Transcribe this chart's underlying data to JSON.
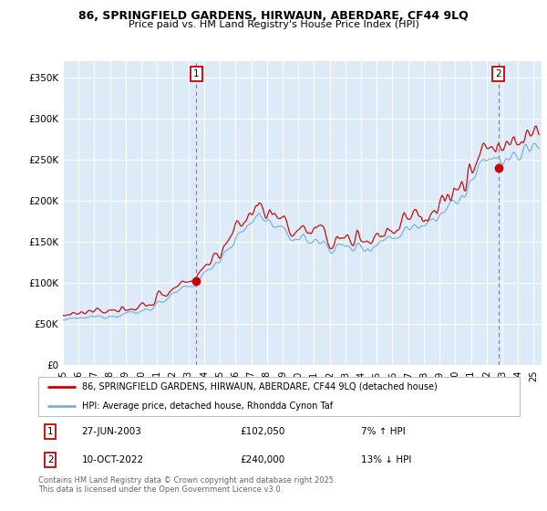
{
  "title_line1": "86, SPRINGFIELD GARDENS, HIRWAUN, ABERDARE, CF44 9LQ",
  "title_line2": "Price paid vs. HM Land Registry's House Price Index (HPI)",
  "ylabel_ticks": [
    "£0",
    "£50K",
    "£100K",
    "£150K",
    "£200K",
    "£250K",
    "£300K",
    "£350K"
  ],
  "ytick_values": [
    0,
    50000,
    100000,
    150000,
    200000,
    250000,
    300000,
    350000
  ],
  "ylim": [
    0,
    370000
  ],
  "xlim_start": 1995,
  "xlim_end": 2025.5,
  "bg_color": "#ddeaf8",
  "grid_color": "#ffffff",
  "line1_color": "#cc0000",
  "line2_color": "#7ab0d8",
  "legend_line1": "86, SPRINGFIELD GARDENS, HIRWAUN, ABERDARE, CF44 9LQ (detached house)",
  "legend_line2": "HPI: Average price, detached house, Rhondda Cynon Taf",
  "annotation1_text": "27-JUN-2003",
  "annotation1_price": "£102,050",
  "annotation1_hpi": "7% ↑ HPI",
  "annotation2_text": "10-OCT-2022",
  "annotation2_price": "£240,000",
  "annotation2_hpi": "13% ↓ HPI",
  "footer": "Contains HM Land Registry data © Crown copyright and database right 2025.\nThis data is licensed under the Open Government Licence v3.0."
}
